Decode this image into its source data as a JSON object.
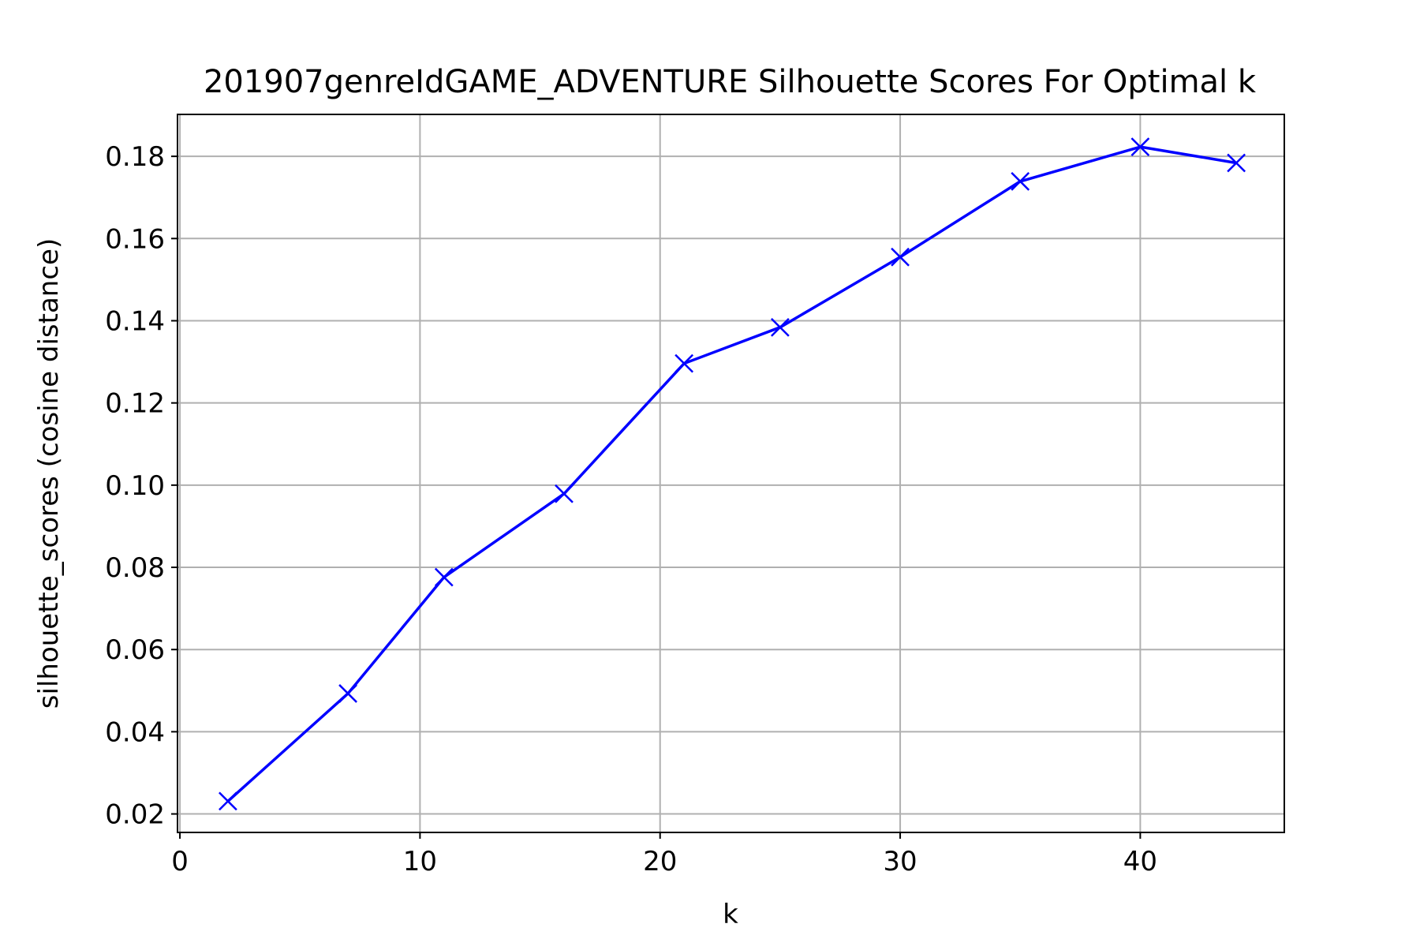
{
  "chart_data": {
    "type": "line",
    "title": "201907genreIdGAME_ADVENTURE Silhouette Scores For Optimal k",
    "xlabel": "k",
    "ylabel": "silhouette_scores (cosine distance)",
    "xlim": [
      -0.1,
      46
    ],
    "ylim": [
      0.0155,
      0.1902
    ],
    "x_ticks": [
      0,
      10,
      20,
      30,
      40
    ],
    "y_ticks": [
      0.02,
      0.04,
      0.06,
      0.08,
      0.1,
      0.12,
      0.14,
      0.16,
      0.18
    ],
    "x_tick_labels": [
      "0",
      "10",
      "20",
      "30",
      "40"
    ],
    "y_tick_labels": [
      "0.02",
      "0.04",
      "0.06",
      "0.08",
      "0.10",
      "0.12",
      "0.14",
      "0.16",
      "0.18"
    ],
    "grid": true,
    "marker": "x",
    "line_color": "#0000ff",
    "grid_color": "#b0b0b0",
    "series": [
      {
        "x": [
          2,
          7,
          11,
          16,
          21,
          25,
          30,
          35,
          40,
          44
        ],
        "values": [
          0.0231,
          0.0493,
          0.0776,
          0.0979,
          0.1296,
          0.1384,
          0.1555,
          0.1739,
          0.1823,
          0.1784
        ]
      }
    ]
  }
}
